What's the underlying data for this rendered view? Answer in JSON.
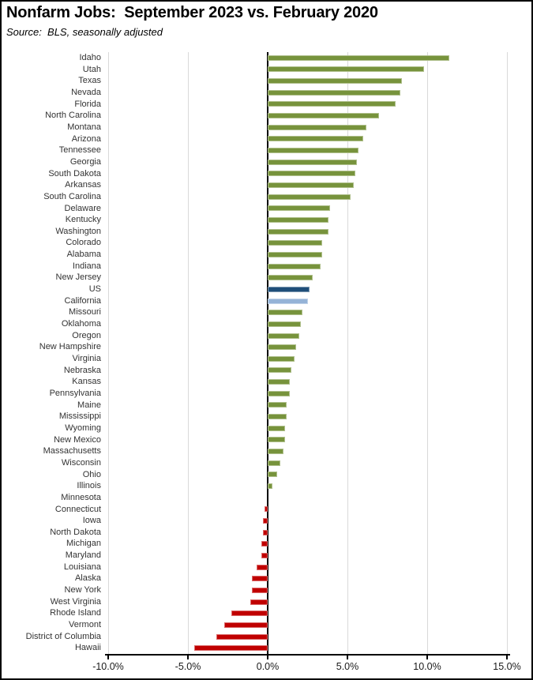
{
  "header": {
    "title": "Nonfarm Jobs:  September 2023 vs. February 2020",
    "source": "Source:  BLS, seasonally adjusted"
  },
  "chart_data": {
    "type": "bar",
    "orientation": "horizontal",
    "title": "Nonfarm Jobs:  September 2023 vs. February 2020",
    "subtitle": "Source:  BLS, seasonally adjusted",
    "unit": "percent change in nonfarm jobs",
    "xlim": [
      -10,
      15
    ],
    "x_tick_values": [
      -10,
      -5,
      0,
      5,
      10,
      15
    ],
    "x_tick_labels": [
      "-10.0%",
      "-5.0%",
      "0.0%",
      "5.0%",
      "10.0%",
      "15.0%"
    ],
    "grid": true,
    "legend": false,
    "sort": "descending",
    "categories": [
      "Idaho",
      "Utah",
      "Texas",
      "Nevada",
      "Florida",
      "North Carolina",
      "Montana",
      "Arizona",
      "Tennessee",
      "Georgia",
      "South Dakota",
      "Arkansas",
      "South Carolina",
      "Delaware",
      "Kentucky",
      "Washington",
      "Colorado",
      "Alabama",
      "Indiana",
      "New Jersey",
      "US",
      "California",
      "Missouri",
      "Oklahoma",
      "Oregon",
      "New Hampshire",
      "Virginia",
      "Nebraska",
      "Kansas",
      "Pennsylvania",
      "Maine",
      "Mississippi",
      "Wyoming",
      "New Mexico",
      "Massachusetts",
      "Wisconsin",
      "Ohio",
      "Illinois",
      "Minnesota",
      "Connecticut",
      "Iowa",
      "North Dakota",
      "Michigan",
      "Maryland",
      "Louisiana",
      "Alaska",
      "New York",
      "West Virginia",
      "Rhode Island",
      "Vermont",
      "District of Columbia",
      "Hawaii"
    ],
    "values": [
      11.4,
      9.8,
      8.4,
      8.3,
      8.0,
      7.0,
      6.2,
      6.0,
      5.7,
      5.6,
      5.5,
      5.4,
      5.2,
      3.9,
      3.8,
      3.8,
      3.4,
      3.4,
      3.3,
      2.8,
      2.6,
      2.5,
      2.2,
      2.1,
      2.0,
      1.8,
      1.7,
      1.5,
      1.4,
      1.4,
      1.2,
      1.2,
      1.1,
      1.1,
      1.0,
      0.8,
      0.6,
      0.3,
      0.0,
      -0.2,
      -0.3,
      -0.3,
      -0.4,
      -0.4,
      -0.7,
      -1.0,
      -1.0,
      -1.1,
      -2.3,
      -2.7,
      -3.2,
      -4.6
    ],
    "highlights": {
      "US": "navy",
      "California": "light_blue"
    }
  },
  "colors": {
    "bar_positive": "#77933C",
    "bar_negative": "#C00000",
    "bar_us": "#1F4E79",
    "bar_california": "#95B3D7",
    "gridline": "#D9D9D9",
    "axis": "#000000",
    "text": "#1a1a1a"
  }
}
